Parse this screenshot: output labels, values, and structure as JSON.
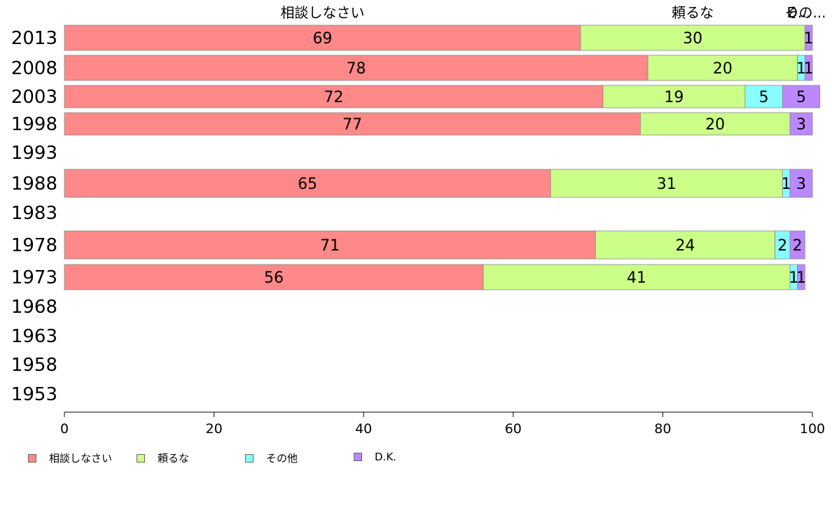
{
  "chart_data": {
    "type": "bar",
    "orientation": "horizontal",
    "stacked": true,
    "categories": [
      "2013",
      "2008",
      "2003",
      "1998",
      "1993",
      "1988",
      "1983",
      "1978",
      "1973",
      "1968",
      "1963",
      "1958",
      "1953"
    ],
    "series": [
      {
        "name": "相談しなさい",
        "color": "#ff8888",
        "values": [
          69,
          78,
          72,
          77,
          null,
          65,
          null,
          71,
          56,
          null,
          null,
          null,
          null
        ]
      },
      {
        "name": "頼るな",
        "color": "#ccff88",
        "values": [
          30,
          20,
          19,
          20,
          null,
          31,
          null,
          24,
          41,
          null,
          null,
          null,
          null
        ]
      },
      {
        "name": "その他",
        "color": "#88ffff",
        "values": [
          0,
          1,
          5,
          0,
          null,
          1,
          null,
          2,
          1,
          null,
          null,
          null,
          null
        ]
      },
      {
        "name": "D.K.",
        "color": "#bb88ff",
        "values": [
          1,
          1,
          5,
          3,
          null,
          3,
          null,
          2,
          1,
          null,
          null,
          null,
          null
        ]
      }
    ],
    "top_labels": [
      "相談しなさい",
      "頼るな",
      "その..."
    ],
    "overlap_label": "D...",
    "xlim": [
      0,
      100
    ],
    "xticks": [
      0,
      20,
      40,
      60,
      80,
      100
    ],
    "legend_position": "bottom"
  }
}
